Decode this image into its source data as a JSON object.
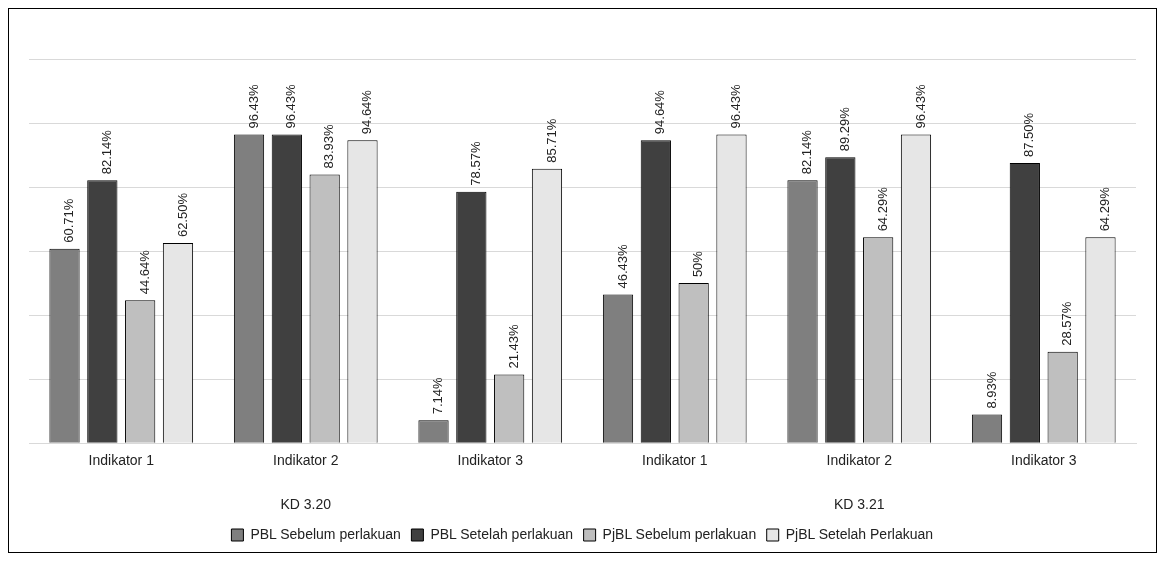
{
  "chart_data": {
    "type": "bar",
    "categories": [
      "Indikator 1",
      "Indikator 2",
      "Indikator 3",
      "Indikator 1",
      "Indikator 2",
      "Indikator 3"
    ],
    "annotations": [
      "KD 3.20",
      "KD 3.21"
    ],
    "series": [
      {
        "name": "PBL Sebelum perlakuan",
        "color": "#7f7f7f",
        "values": [
          60.71,
          96.43,
          7.14,
          46.43,
          82.14,
          8.93
        ],
        "value_labels": [
          "60.71%",
          "96.43%",
          "7.14%",
          "46.43%",
          "82.14%",
          "8.93%"
        ]
      },
      {
        "name": "PBL Setelah perlakuan",
        "color": "#404040",
        "values": [
          82.14,
          96.43,
          78.57,
          94.64,
          89.29,
          87.5
        ],
        "value_labels": [
          "82.14%",
          "96.43%",
          "78.57%",
          "94.64%",
          "89.29%",
          "87.50%"
        ]
      },
      {
        "name": "PjBL Sebelum perlakuan",
        "color": "#bfbfbf",
        "values": [
          44.64,
          83.93,
          21.43,
          50,
          64.29,
          28.57
        ],
        "value_labels": [
          "44.64%",
          "83.93%",
          "21.43%",
          "50%",
          "64.29%",
          "28.57%"
        ]
      },
      {
        "name": "PjBL Setelah Perlakuan",
        "color": "#e6e6e6",
        "values": [
          62.5,
          94.64,
          85.71,
          96.43,
          96.43,
          64.29
        ],
        "value_labels": [
          "62.50%",
          "94.64%",
          "85.71%",
          "96.43%",
          "96.43%",
          "64.29%"
        ]
      }
    ],
    "ylim": [
      0,
      120
    ],
    "tick_labels": "x",
    "grid": "y",
    "legend": "bottom"
  }
}
